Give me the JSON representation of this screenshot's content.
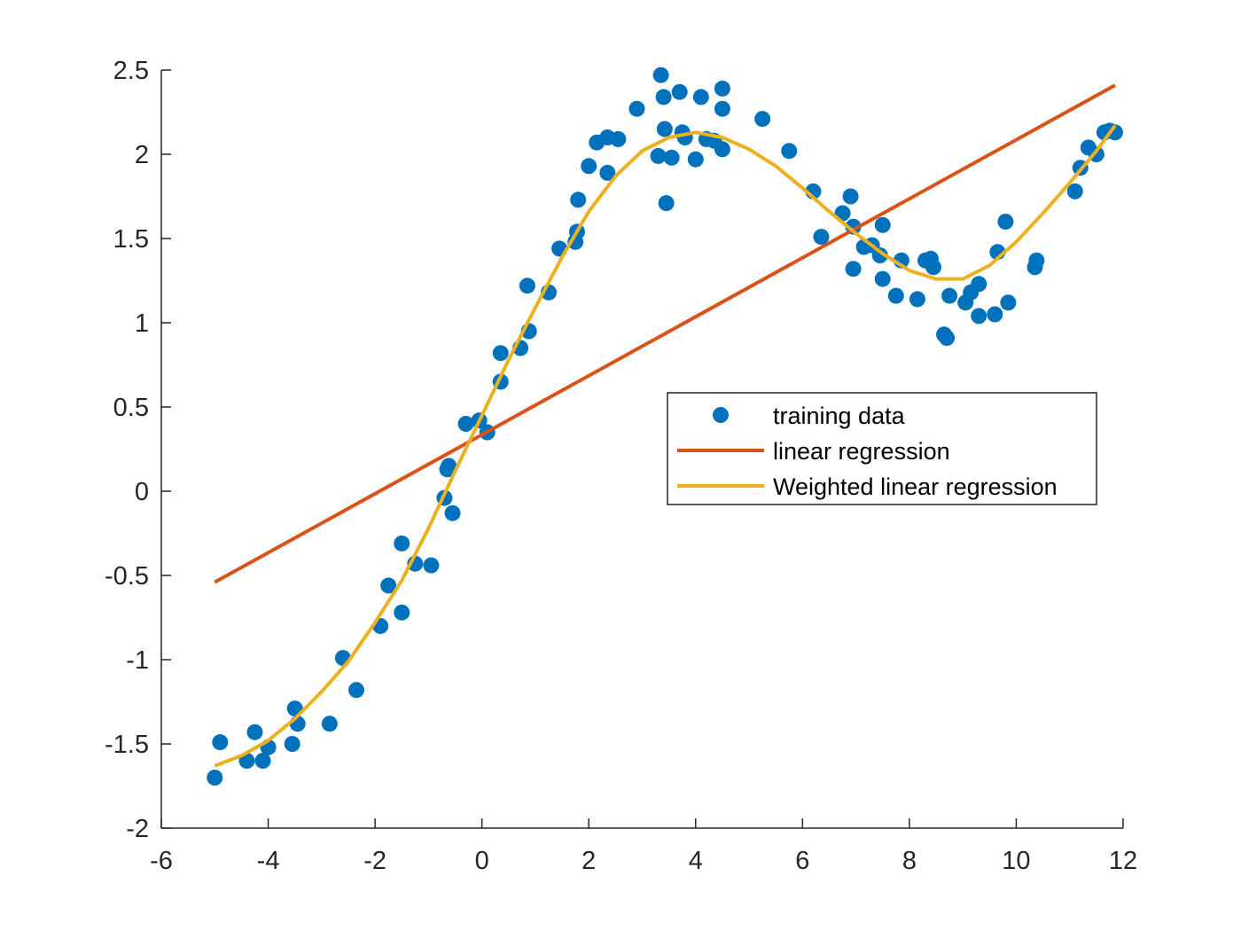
{
  "colors": {
    "training": "#0072BD",
    "linear": "#D95319",
    "weighted": "#EDB120",
    "axis": "#262626",
    "legend_border": "#262626"
  },
  "chart_data": {
    "type": "scatter",
    "title": "",
    "xlabel": "",
    "ylabel": "",
    "xlim": [
      -6,
      12
    ],
    "ylim": [
      -2,
      2.5
    ],
    "xticks": [
      -6,
      -4,
      -2,
      0,
      2,
      4,
      6,
      8,
      10,
      12
    ],
    "xtick_labels": [
      "-6",
      "-4",
      "-2",
      "0",
      "2",
      "4",
      "6",
      "8",
      "10",
      "12"
    ],
    "yticks": [
      -2,
      -1.5,
      -1,
      -0.5,
      0,
      0.5,
      1,
      1.5,
      2,
      2.5
    ],
    "ytick_labels": [
      "-2",
      "-1.5",
      "-1",
      "-0.5",
      "0",
      "0.5",
      "1",
      "1.5",
      "2",
      "2.5"
    ],
    "grid": false,
    "legend_position": "center-right",
    "legend": [
      "training data",
      "linear regression",
      "Weighted linear regression"
    ],
    "series": [
      {
        "name": "training data",
        "kind": "scatter",
        "points": [
          [
            -5.0,
            -1.7
          ],
          [
            -4.9,
            -1.49
          ],
          [
            -4.4,
            -1.6
          ],
          [
            -4.25,
            -1.43
          ],
          [
            -4.1,
            -1.6
          ],
          [
            -4.0,
            -1.52
          ],
          [
            -3.5,
            -1.29
          ],
          [
            -3.45,
            -1.38
          ],
          [
            -3.55,
            -1.5
          ],
          [
            -2.85,
            -1.38
          ],
          [
            -2.6,
            -0.99
          ],
          [
            -2.35,
            -1.18
          ],
          [
            -1.9,
            -0.8
          ],
          [
            -1.75,
            -0.56
          ],
          [
            -1.5,
            -0.72
          ],
          [
            -1.5,
            -0.31
          ],
          [
            -1.25,
            -0.43
          ],
          [
            -0.95,
            -0.44
          ],
          [
            -0.7,
            -0.04
          ],
          [
            -0.65,
            0.13
          ],
          [
            -0.62,
            0.15
          ],
          [
            -0.55,
            -0.13
          ],
          [
            -0.3,
            0.4
          ],
          [
            -0.05,
            0.42
          ],
          [
            0.1,
            0.35
          ],
          [
            0.35,
            0.65
          ],
          [
            0.35,
            0.82
          ],
          [
            0.72,
            0.85
          ],
          [
            0.88,
            0.95
          ],
          [
            0.85,
            1.22
          ],
          [
            1.25,
            1.18
          ],
          [
            1.45,
            1.44
          ],
          [
            1.75,
            1.48
          ],
          [
            1.78,
            1.54
          ],
          [
            1.8,
            1.73
          ],
          [
            2.0,
            1.93
          ],
          [
            2.15,
            2.07
          ],
          [
            2.35,
            2.1
          ],
          [
            2.35,
            1.89
          ],
          [
            2.55,
            2.09
          ],
          [
            2.9,
            2.27
          ],
          [
            3.3,
            1.99
          ],
          [
            3.35,
            2.47
          ],
          [
            3.4,
            2.34
          ],
          [
            3.42,
            2.15
          ],
          [
            3.45,
            1.71
          ],
          [
            3.55,
            1.98
          ],
          [
            3.7,
            2.37
          ],
          [
            3.75,
            2.13
          ],
          [
            3.8,
            2.1
          ],
          [
            4.0,
            1.97
          ],
          [
            4.1,
            2.34
          ],
          [
            4.2,
            2.09
          ],
          [
            4.35,
            2.08
          ],
          [
            4.5,
            2.39
          ],
          [
            4.5,
            2.27
          ],
          [
            4.5,
            2.03
          ],
          [
            5.25,
            2.21
          ],
          [
            5.75,
            2.02
          ],
          [
            6.2,
            1.78
          ],
          [
            6.35,
            1.51
          ],
          [
            6.75,
            1.65
          ],
          [
            6.9,
            1.75
          ],
          [
            6.95,
            1.57
          ],
          [
            6.95,
            1.32
          ],
          [
            7.15,
            1.45
          ],
          [
            7.3,
            1.46
          ],
          [
            7.45,
            1.4
          ],
          [
            7.5,
            1.58
          ],
          [
            7.5,
            1.26
          ],
          [
            7.75,
            1.16
          ],
          [
            7.85,
            1.37
          ],
          [
            8.15,
            1.14
          ],
          [
            8.3,
            1.37
          ],
          [
            8.4,
            1.38
          ],
          [
            8.45,
            1.33
          ],
          [
            8.65,
            0.93
          ],
          [
            8.7,
            0.91
          ],
          [
            8.75,
            1.16
          ],
          [
            9.05,
            1.12
          ],
          [
            9.15,
            1.18
          ],
          [
            9.3,
            1.23
          ],
          [
            9.3,
            1.04
          ],
          [
            9.6,
            1.05
          ],
          [
            9.65,
            1.42
          ],
          [
            9.8,
            1.6
          ],
          [
            9.85,
            1.12
          ],
          [
            10.35,
            1.33
          ],
          [
            10.38,
            1.37
          ],
          [
            11.1,
            1.78
          ],
          [
            11.2,
            1.92
          ],
          [
            11.35,
            2.04
          ],
          [
            11.5,
            2.0
          ],
          [
            11.65,
            2.13
          ],
          [
            11.75,
            2.14
          ],
          [
            11.85,
            2.13
          ]
        ]
      },
      {
        "name": "linear regression",
        "kind": "line",
        "points": [
          [
            -5.0,
            -0.54
          ],
          [
            11.85,
            2.41
          ]
        ]
      },
      {
        "name": "Weighted linear regression",
        "kind": "line",
        "points": [
          [
            -5.0,
            -1.63
          ],
          [
            -4.5,
            -1.57
          ],
          [
            -4.0,
            -1.48
          ],
          [
            -3.5,
            -1.35
          ],
          [
            -3.0,
            -1.19
          ],
          [
            -2.5,
            -1.01
          ],
          [
            -2.0,
            -0.78
          ],
          [
            -1.5,
            -0.53
          ],
          [
            -1.0,
            -0.22
          ],
          [
            -0.5,
            0.12
          ],
          [
            0.0,
            0.45
          ],
          [
            0.5,
            0.78
          ],
          [
            1.0,
            1.09
          ],
          [
            1.5,
            1.39
          ],
          [
            2.0,
            1.66
          ],
          [
            2.5,
            1.87
          ],
          [
            3.0,
            2.02
          ],
          [
            3.5,
            2.1
          ],
          [
            4.0,
            2.13
          ],
          [
            4.5,
            2.1
          ],
          [
            5.0,
            2.03
          ],
          [
            5.5,
            1.93
          ],
          [
            6.0,
            1.8
          ],
          [
            6.5,
            1.66
          ],
          [
            7.0,
            1.53
          ],
          [
            7.5,
            1.41
          ],
          [
            8.0,
            1.31
          ],
          [
            8.5,
            1.26
          ],
          [
            9.0,
            1.26
          ],
          [
            9.5,
            1.34
          ],
          [
            10.0,
            1.48
          ],
          [
            10.5,
            1.65
          ],
          [
            11.0,
            1.83
          ],
          [
            11.5,
            2.02
          ],
          [
            11.85,
            2.17
          ]
        ]
      }
    ]
  }
}
